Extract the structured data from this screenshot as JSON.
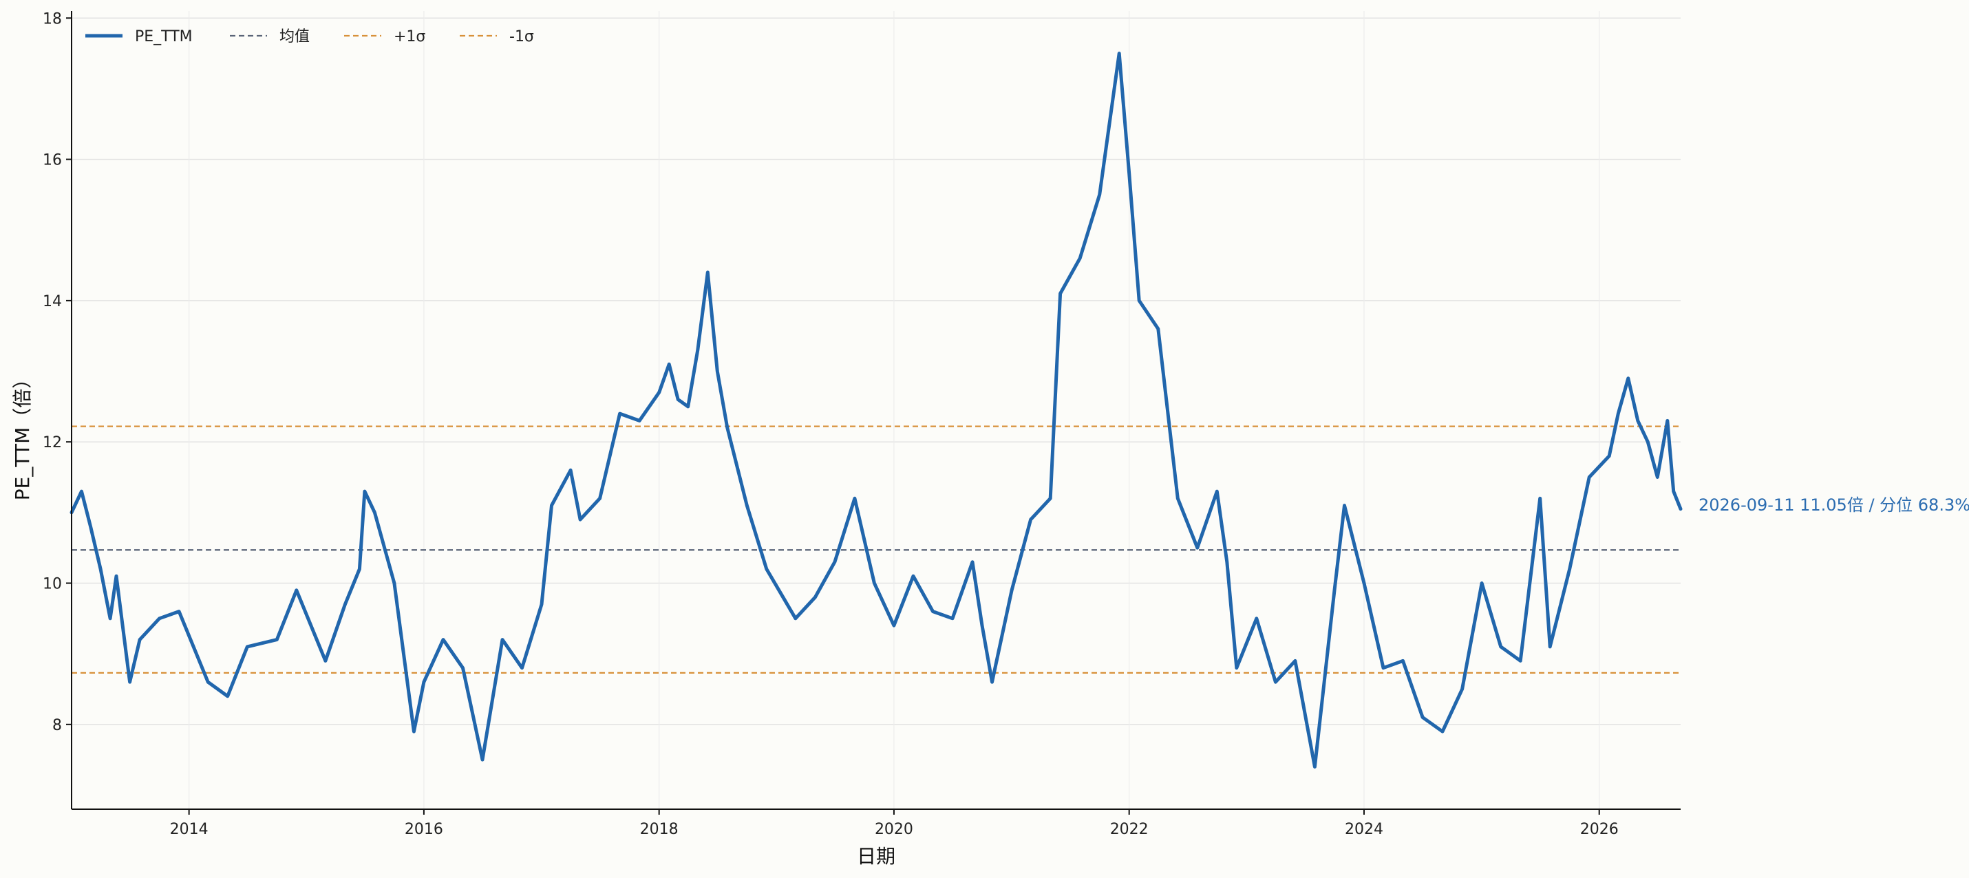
{
  "chart_data": {
    "type": "line",
    "title": "",
    "xlabel": "日期",
    "ylabel": "PE_TTM（倍）",
    "xlim": [
      "2013-01-01",
      "2026-09-11"
    ],
    "ylim": [
      6.8,
      18.1
    ],
    "grid": true,
    "legend_placement": "top-left",
    "x_ticks": [
      "2014",
      "2016",
      "2018",
      "2020",
      "2022",
      "2024",
      "2026"
    ],
    "y_ticks": [
      "8",
      "10",
      "12",
      "14",
      "16",
      "18"
    ],
    "legend": [
      {
        "label": "PE_TTM",
        "style": "solid",
        "color": "#2166ac"
      },
      {
        "label": "均值",
        "style": "dashed",
        "color": "#5a6478"
      },
      {
        "label": "+1σ",
        "style": "dashed",
        "color": "#d8913a"
      },
      {
        "label": "-1σ",
        "style": "dashed",
        "color": "#d8913a"
      }
    ],
    "reference_lines": {
      "mean": 10.47,
      "plus_1sigma": 12.22,
      "minus_1sigma": 8.73
    },
    "annotation": "2026-09-11  11.05倍 / 分位 68.3%",
    "colors": {
      "series": "#2166ac",
      "mean": "#5a6478",
      "sigma": "#d8913a",
      "annotation": "#2b6cb0"
    },
    "series": [
      {
        "name": "PE_TTM",
        "points": [
          [
            "2013-01-01",
            11.0
          ],
          [
            "2013-02-01",
            11.3
          ],
          [
            "2013-03-01",
            10.8
          ],
          [
            "2013-04-01",
            10.2
          ],
          [
            "2013-05-01",
            9.5
          ],
          [
            "2013-05-20",
            10.1
          ],
          [
            "2013-07-01",
            8.6
          ],
          [
            "2013-08-01",
            9.2
          ],
          [
            "2013-10-01",
            9.5
          ],
          [
            "2013-12-01",
            9.6
          ],
          [
            "2014-03-01",
            8.6
          ],
          [
            "2014-05-01",
            8.4
          ],
          [
            "2014-07-01",
            9.1
          ],
          [
            "2014-10-01",
            9.2
          ],
          [
            "2014-12-01",
            9.9
          ],
          [
            "2015-03-01",
            8.9
          ],
          [
            "2015-05-01",
            9.7
          ],
          [
            "2015-06-15",
            10.2
          ],
          [
            "2015-07-01",
            11.3
          ],
          [
            "2015-08-01",
            11.0
          ],
          [
            "2015-10-01",
            10.0
          ],
          [
            "2015-12-01",
            7.9
          ],
          [
            "2016-01-01",
            8.6
          ],
          [
            "2016-03-01",
            9.2
          ],
          [
            "2016-05-01",
            8.8
          ],
          [
            "2016-07-01",
            7.5
          ],
          [
            "2016-09-01",
            9.2
          ],
          [
            "2016-11-01",
            8.8
          ],
          [
            "2017-01-01",
            9.7
          ],
          [
            "2017-02-01",
            11.1
          ],
          [
            "2017-04-01",
            11.6
          ],
          [
            "2017-05-01",
            10.9
          ],
          [
            "2017-07-01",
            11.2
          ],
          [
            "2017-09-01",
            12.4
          ],
          [
            "2017-11-01",
            12.3
          ],
          [
            "2018-01-01",
            12.7
          ],
          [
            "2018-02-01",
            13.1
          ],
          [
            "2018-03-01",
            12.6
          ],
          [
            "2018-04-01",
            12.5
          ],
          [
            "2018-05-01",
            13.3
          ],
          [
            "2018-06-01",
            14.4
          ],
          [
            "2018-07-01",
            13.0
          ],
          [
            "2018-08-01",
            12.2
          ],
          [
            "2018-10-01",
            11.1
          ],
          [
            "2018-12-01",
            10.2
          ],
          [
            "2019-03-01",
            9.5
          ],
          [
            "2019-05-01",
            9.8
          ],
          [
            "2019-07-01",
            10.3
          ],
          [
            "2019-09-01",
            11.2
          ],
          [
            "2019-11-01",
            10.0
          ],
          [
            "2020-01-01",
            9.4
          ],
          [
            "2020-03-01",
            10.1
          ],
          [
            "2020-05-01",
            9.6
          ],
          [
            "2020-07-01",
            9.5
          ],
          [
            "2020-09-01",
            10.3
          ],
          [
            "2020-10-01",
            9.4
          ],
          [
            "2020-11-01",
            8.6
          ],
          [
            "2021-01-01",
            9.9
          ],
          [
            "2021-03-01",
            10.9
          ],
          [
            "2021-05-01",
            11.2
          ],
          [
            "2021-06-01",
            14.1
          ],
          [
            "2021-08-01",
            14.6
          ],
          [
            "2021-10-01",
            15.5
          ],
          [
            "2021-12-01",
            17.5
          ],
          [
            "2022-01-01",
            15.8
          ],
          [
            "2022-02-01",
            14.0
          ],
          [
            "2022-04-01",
            13.6
          ],
          [
            "2022-06-01",
            11.2
          ],
          [
            "2022-08-01",
            10.5
          ],
          [
            "2022-10-01",
            11.3
          ],
          [
            "2022-11-01",
            10.3
          ],
          [
            "2022-12-01",
            8.8
          ],
          [
            "2023-02-01",
            9.5
          ],
          [
            "2023-04-01",
            8.6
          ],
          [
            "2023-06-01",
            8.9
          ],
          [
            "2023-08-01",
            7.4
          ],
          [
            "2023-10-01",
            9.9
          ],
          [
            "2023-11-01",
            11.1
          ],
          [
            "2024-01-01",
            10.0
          ],
          [
            "2024-03-01",
            8.8
          ],
          [
            "2024-05-01",
            8.9
          ],
          [
            "2024-07-01",
            8.1
          ],
          [
            "2024-09-01",
            7.9
          ],
          [
            "2024-11-01",
            8.5
          ],
          [
            "2025-01-01",
            10.0
          ],
          [
            "2025-03-01",
            9.1
          ],
          [
            "2025-05-01",
            8.9
          ],
          [
            "2025-07-01",
            11.2
          ],
          [
            "2025-08-01",
            9.1
          ],
          [
            "2025-10-01",
            10.2
          ],
          [
            "2025-12-01",
            11.5
          ],
          [
            "2026-02-01",
            11.8
          ],
          [
            "2026-03-01",
            12.4
          ],
          [
            "2026-04-01",
            12.9
          ],
          [
            "2026-05-01",
            12.3
          ],
          [
            "2026-06-01",
            12.0
          ],
          [
            "2026-07-01",
            11.5
          ],
          [
            "2026-08-01",
            12.3
          ],
          [
            "2026-08-20",
            11.3
          ],
          [
            "2026-09-11",
            11.05
          ]
        ]
      }
    ]
  }
}
